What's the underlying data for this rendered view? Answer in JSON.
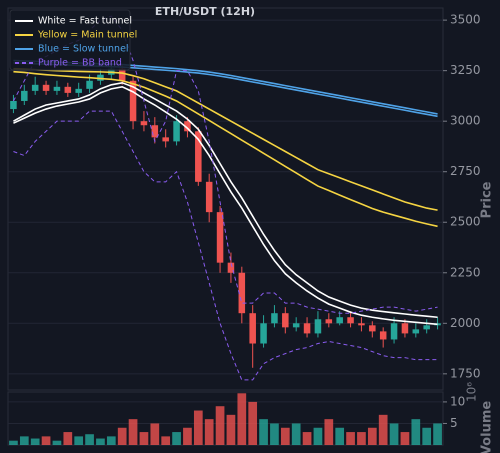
{
  "chart_data": [
    {
      "type": "candlestick",
      "title": "ETH/USDT (12H)",
      "ylabel": "Price",
      "up_color": "#26a69a",
      "down_color": "#ef5350",
      "grid": true,
      "legend": "upper left",
      "ylim": [
        1670,
        3560
      ],
      "yticks": [
        1750,
        2000,
        2250,
        2500,
        2750,
        3000,
        3250,
        3500
      ],
      "open": [
        3060,
        3100,
        3150,
        3180,
        3150,
        3170,
        3140,
        3160,
        3200,
        3230,
        3260,
        3200,
        3000,
        2980,
        2920,
        2900,
        3000,
        2950,
        2700,
        2550,
        2300,
        2250,
        2050,
        1900,
        2000,
        2050,
        1980,
        2000,
        1950,
        2020,
        2000,
        2030,
        2000,
        1990,
        1960,
        1920,
        2000,
        1950,
        1970,
        1990
      ],
      "high": [
        3130,
        3180,
        3220,
        3200,
        3200,
        3190,
        3190,
        3230,
        3260,
        3290,
        3280,
        3220,
        3050,
        3020,
        2960,
        3030,
        3020,
        2970,
        2740,
        2580,
        2350,
        2280,
        2090,
        2040,
        2090,
        2080,
        2030,
        2030,
        2060,
        2050,
        2060,
        2060,
        2030,
        2010,
        1980,
        2030,
        2020,
        2000,
        2020,
        2030
      ],
      "low": [
        3040,
        3080,
        3130,
        3130,
        3130,
        3120,
        3120,
        3140,
        3180,
        3210,
        3180,
        2960,
        2950,
        2890,
        2870,
        2880,
        2920,
        2680,
        2500,
        2250,
        2200,
        2000,
        1780,
        1880,
        1980,
        1950,
        1960,
        1930,
        1930,
        1980,
        1990,
        1980,
        1960,
        1930,
        1880,
        1900,
        1930,
        1930,
        1950,
        1970
      ],
      "close": [
        3100,
        3150,
        3180,
        3150,
        3170,
        3140,
        3160,
        3200,
        3230,
        3260,
        3200,
        3000,
        2980,
        2920,
        2900,
        3000,
        2950,
        2700,
        2550,
        2300,
        2250,
        2050,
        1900,
        2000,
        2050,
        1980,
        2000,
        1950,
        2020,
        2000,
        2030,
        2000,
        1990,
        1960,
        1920,
        2000,
        1950,
        1970,
        1990,
        2000
      ],
      "series": [
        {
          "name": "White = Fast tunnel",
          "color": "#ffffff",
          "dashed": false,
          "upper": [
            3000,
            3030,
            3060,
            3080,
            3090,
            3100,
            3110,
            3130,
            3160,
            3180,
            3190,
            3170,
            3140,
            3110,
            3080,
            3050,
            3010,
            2960,
            2880,
            2790,
            2700,
            2620,
            2530,
            2440,
            2360,
            2290,
            2240,
            2200,
            2160,
            2130,
            2110,
            2090,
            2075,
            2065,
            2058,
            2052,
            2046,
            2040,
            2035,
            2030
          ],
          "lower": [
            2990,
            3015,
            3040,
            3060,
            3075,
            3085,
            3095,
            3110,
            3140,
            3160,
            3170,
            3145,
            3110,
            3080,
            3045,
            3010,
            2965,
            2910,
            2830,
            2740,
            2650,
            2570,
            2480,
            2390,
            2310,
            2245,
            2200,
            2160,
            2125,
            2095,
            2075,
            2055,
            2040,
            2030,
            2022,
            2015,
            2010,
            2005,
            2000,
            1995
          ]
        },
        {
          "name": "Yellow = Main tunnel",
          "color": "#f5d442",
          "dashed": false,
          "upper": [
            3260,
            3258,
            3255,
            3252,
            3250,
            3248,
            3246,
            3245,
            3244,
            3242,
            3238,
            3225,
            3210,
            3190,
            3170,
            3150,
            3120,
            3090,
            3060,
            3030,
            3000,
            2970,
            2940,
            2910,
            2880,
            2850,
            2820,
            2790,
            2760,
            2740,
            2720,
            2700,
            2680,
            2660,
            2640,
            2620,
            2600,
            2585,
            2570,
            2560
          ],
          "lower": [
            3245,
            3241,
            3235,
            3230,
            3226,
            3222,
            3218,
            3215,
            3211,
            3207,
            3200,
            3185,
            3168,
            3146,
            3124,
            3100,
            3068,
            3036,
            3004,
            2971,
            2939,
            2906,
            2874,
            2841,
            2809,
            2776,
            2744,
            2711,
            2679,
            2657,
            2634,
            2612,
            2590,
            2568,
            2550,
            2535,
            2520,
            2505,
            2492,
            2480
          ]
        },
        {
          "name": "Blue = Slow tunnel",
          "color": "#4fa3e8",
          "dashed": false,
          "upper": [
            3300,
            3298,
            3296,
            3294,
            3292,
            3290,
            3288,
            3286,
            3284,
            3282,
            3280,
            3276,
            3272,
            3268,
            3264,
            3260,
            3255,
            3250,
            3243,
            3235,
            3226,
            3216,
            3206,
            3196,
            3186,
            3176,
            3166,
            3156,
            3146,
            3136,
            3126,
            3116,
            3106,
            3096,
            3086,
            3076,
            3066,
            3056,
            3046,
            3036
          ],
          "lower": [
            3288,
            3286,
            3284,
            3282,
            3280,
            3278,
            3276,
            3274,
            3272,
            3270,
            3268,
            3264,
            3260,
            3256,
            3252,
            3248,
            3243,
            3238,
            3231,
            3223,
            3214,
            3204,
            3194,
            3184,
            3174,
            3164,
            3154,
            3144,
            3134,
            3124,
            3114,
            3104,
            3094,
            3084,
            3074,
            3064,
            3054,
            3044,
            3034,
            3024
          ]
        },
        {
          "name": "Purple = BB band",
          "color": "#8a5cf0",
          "dashed": true,
          "upper": [
            3100,
            3200,
            3300,
            3320,
            3350,
            3380,
            3400,
            3450,
            3500,
            3520,
            3450,
            3300,
            3100,
            2900,
            3000,
            3250,
            3250,
            3150,
            2900,
            2600,
            2300,
            2100,
            2100,
            2150,
            2150,
            2100,
            2100,
            2080,
            2070,
            2060,
            2050,
            2050,
            2060,
            2070,
            2080,
            2080,
            2070,
            2060,
            2070,
            2080
          ],
          "lower": [
            2850,
            2830,
            2900,
            2950,
            3000,
            3000,
            3000,
            3050,
            3050,
            3050,
            2950,
            2850,
            2750,
            2700,
            2700,
            2750,
            2600,
            2400,
            2200,
            2000,
            1850,
            1720,
            1720,
            1800,
            1830,
            1850,
            1870,
            1880,
            1900,
            1910,
            1900,
            1890,
            1880,
            1860,
            1840,
            1830,
            1830,
            1820,
            1820,
            1820
          ]
        }
      ]
    },
    {
      "type": "bar",
      "ylabel": "Volume",
      "offset_label": "10⁶",
      "grid": true,
      "ylim": [
        0,
        12.3
      ],
      "yticks": [
        5,
        10
      ],
      "values": [
        1,
        2,
        1.5,
        2,
        1,
        3,
        2,
        2.5,
        1.5,
        2,
        4,
        6,
        3,
        5,
        2,
        3,
        4,
        8,
        6,
        9,
        7,
        12,
        10,
        6,
        5,
        4,
        5,
        3,
        4,
        6,
        4,
        3,
        3,
        4,
        7,
        5,
        3,
        6,
        4,
        5
      ]
    }
  ]
}
